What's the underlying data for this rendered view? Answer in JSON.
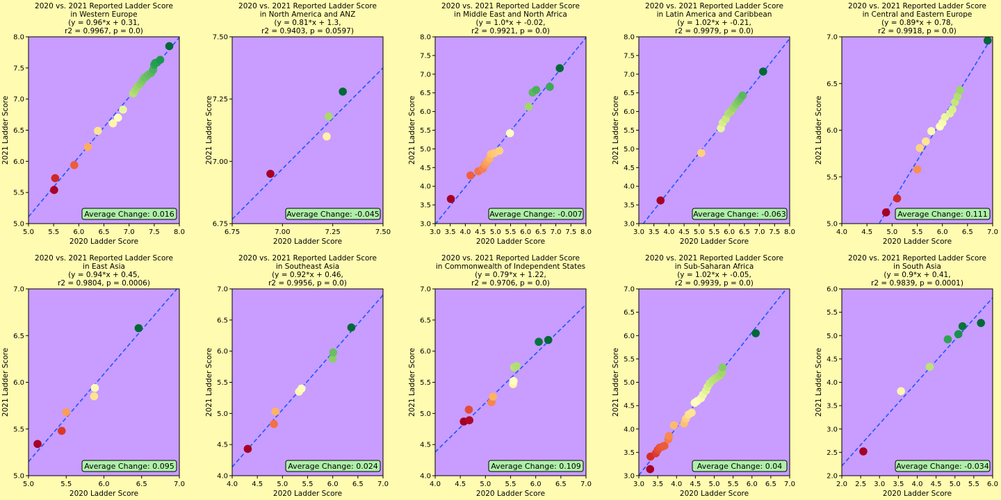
{
  "colors": {
    "figure_bg": "#fffbb0",
    "plot_bg": "#c99cff",
    "fit_line": "#1f5cff",
    "badge_fill": "#aef0a8",
    "colormap": "RdYlGn"
  },
  "chart_data": [
    {
      "type": "scatter",
      "region": "Western Europe",
      "title": [
        "2020 vs. 2021 Reported Ladder Score",
        "in Western Europe",
        "(y = 0.96*x + 0.31,",
        "r2 = 0.9967, p = 0.0)"
      ],
      "xlabel": "2020 Ladder Score",
      "ylabel": "2021 Ladder Score",
      "xlim": [
        5.0,
        8.0
      ],
      "ylim": [
        5.0,
        8.0
      ],
      "xticks": [
        "5.0",
        "5.5",
        "6.0",
        "6.5",
        "7.0",
        "7.5",
        "8.0"
      ],
      "yticks": [
        "5.0",
        "5.5",
        "6.0",
        "6.5",
        "7.0",
        "7.5",
        "8.0"
      ],
      "fit": {
        "slope": 0.96,
        "intercept": 0.31
      },
      "annotation": "Average Change: 0.016",
      "x": [
        5.51,
        5.53,
        5.91,
        6.18,
        6.38,
        6.68,
        6.78,
        6.88,
        7.08,
        7.12,
        7.16,
        7.22,
        7.26,
        7.3,
        7.34,
        7.38,
        7.44,
        7.48,
        7.5,
        7.52,
        7.56,
        7.62,
        7.8
      ],
      "y": [
        5.54,
        5.73,
        5.94,
        6.23,
        6.49,
        6.61,
        6.7,
        6.83,
        7.09,
        7.14,
        7.19,
        7.24,
        7.29,
        7.34,
        7.36,
        7.39,
        7.42,
        7.47,
        7.55,
        7.58,
        7.59,
        7.63,
        7.85
      ]
    },
    {
      "type": "scatter",
      "region": "North America and ANZ",
      "title": [
        "2020 vs. 2021 Reported Ladder Score",
        "in North America and ANZ",
        "(y = 0.81*x + 1.3,",
        "r2 = 0.9403, p = 0.0597)"
      ],
      "xlabel": "2020 Ladder Score",
      "ylabel": "2021 Ladder Score",
      "xlim": [
        6.75,
        7.5
      ],
      "ylim": [
        6.75,
        7.5
      ],
      "xticks": [
        "6.75",
        "7.00",
        "7.25",
        "7.50"
      ],
      "yticks": [
        "6.75",
        "7.00",
        "7.25",
        "7.50"
      ],
      "fit": {
        "slope": 0.81,
        "intercept": 1.3
      },
      "annotation": "Average Change: -0.045",
      "x": [
        6.94,
        7.22,
        7.23,
        7.3
      ],
      "y": [
        6.95,
        7.1,
        7.18,
        7.28
      ]
    },
    {
      "type": "scatter",
      "region": "Middle East and North Africa",
      "title": [
        "2020 vs. 2021 Reported Ladder Score",
        "in Middle East and North Africa",
        "(y = 1.0*x + -0.02,",
        "r2 = 0.9921, p = 0.0)"
      ],
      "xlabel": "2020 Ladder Score",
      "ylabel": "2021 Ladder Score",
      "xlim": [
        3.0,
        8.0
      ],
      "ylim": [
        3.0,
        8.0
      ],
      "xticks": [
        "3.0",
        "3.5",
        "4.0",
        "4.5",
        "5.0",
        "5.5",
        "6.0",
        "6.5",
        "7.0",
        "7.5",
        "8.0"
      ],
      "yticks": [
        "3.0",
        "3.5",
        "4.0",
        "4.5",
        "5.0",
        "5.5",
        "6.0",
        "6.5",
        "7.0",
        "7.5",
        "8.0"
      ],
      "fit": {
        "slope": 1.0,
        "intercept": -0.02
      },
      "annotation": "Average Change: -0.007",
      "x": [
        3.52,
        4.17,
        4.43,
        4.58,
        4.65,
        4.72,
        4.8,
        4.85,
        4.97,
        5.13,
        5.48,
        6.1,
        6.23,
        6.35,
        6.8,
        7.13
      ],
      "y": [
        3.66,
        4.29,
        4.4,
        4.47,
        4.58,
        4.65,
        4.74,
        4.86,
        4.89,
        4.95,
        5.42,
        6.13,
        6.51,
        6.58,
        6.66,
        7.16
      ]
    },
    {
      "type": "scatter",
      "region": "Latin America and Caribbean",
      "title": [
        "2020 vs. 2021 Reported Ladder Score",
        "in Latin America and Caribbean",
        "(y = 1.02*x + -0.21,",
        "r2 = 0.9979, p = 0.0)"
      ],
      "xlabel": "2020 Ladder Score",
      "ylabel": "2021 Ladder Score",
      "xlim": [
        3.0,
        8.0
      ],
      "ylim": [
        3.0,
        8.0
      ],
      "xticks": [
        "3.0",
        "3.5",
        "4.0",
        "4.5",
        "5.0",
        "5.5",
        "6.0",
        "6.5",
        "7.0",
        "7.5",
        "8.0"
      ],
      "yticks": [
        "3.0",
        "3.5",
        "4.0",
        "4.5",
        "5.0",
        "5.5",
        "6.0",
        "6.5",
        "7.0",
        "7.5",
        "8.0"
      ],
      "fit": {
        "slope": 1.02,
        "intercept": -0.21
      },
      "annotation": "Average Change: -0.063",
      "x": [
        3.72,
        5.07,
        5.72,
        5.78,
        5.88,
        5.97,
        6.05,
        6.14,
        6.22,
        6.3,
        6.37,
        6.44,
        7.12
      ],
      "y": [
        3.62,
        4.89,
        5.55,
        5.7,
        5.8,
        5.95,
        6.0,
        6.1,
        6.2,
        6.28,
        6.35,
        6.43,
        7.07
      ]
    },
    {
      "type": "scatter",
      "region": "Central and Eastern Europe",
      "title": [
        "2020 vs. 2021 Reported Ladder Score",
        "in Central and Eastern Europe",
        "(y = 0.89*x + 0.78,",
        "r2 = 0.9918, p = 0.0)"
      ],
      "xlabel": "2020 Ladder Score",
      "ylabel": "2021 Ladder Score",
      "xlim": [
        4.0,
        7.0
      ],
      "ylim": [
        5.0,
        7.0
      ],
      "xticks": [
        "4.0",
        "4.5",
        "5.0",
        "5.5",
        "6.0",
        "6.5",
        "7.0"
      ],
      "yticks": [
        "5.0",
        "5.5",
        "6.0",
        "6.5",
        "7.0"
      ],
      "fit": {
        "slope": 0.89,
        "intercept": 0.78
      },
      "annotation": "Average Change: 0.111",
      "x": [
        4.88,
        5.1,
        5.5,
        5.55,
        5.67,
        5.78,
        5.95,
        6.0,
        6.05,
        6.15,
        6.2,
        6.25,
        6.3,
        6.35,
        6.9
      ],
      "y": [
        5.12,
        5.27,
        5.58,
        5.81,
        5.88,
        5.99,
        6.04,
        6.08,
        6.14,
        6.18,
        6.22,
        6.3,
        6.36,
        6.43,
        6.96
      ]
    },
    {
      "type": "scatter",
      "region": "East Asia",
      "title": [
        "2020 vs. 2021 Reported Ladder Score",
        "in East Asia",
        "(y = 0.94*x + 0.45,",
        "r2 = 0.9804, p = 0.0006)"
      ],
      "xlabel": "2020 Ladder Score",
      "ylabel": "2021 Ladder Score",
      "xlim": [
        5.0,
        7.0
      ],
      "ylim": [
        5.0,
        7.0
      ],
      "xticks": [
        "5.0",
        "5.5",
        "6.0",
        "6.5",
        "7.0"
      ],
      "yticks": [
        "5.0",
        "5.5",
        "6.0",
        "6.5",
        "7.0"
      ],
      "fit": {
        "slope": 0.94,
        "intercept": 0.45
      },
      "annotation": "Average Change: 0.095",
      "x": [
        5.12,
        5.44,
        5.5,
        5.87,
        5.88,
        6.46
      ],
      "y": [
        5.34,
        5.48,
        5.68,
        5.85,
        5.94,
        6.58
      ]
    },
    {
      "type": "scatter",
      "region": "Southeast Asia",
      "title": [
        "2020 vs. 2021 Reported Ladder Score",
        "in Southeast Asia",
        "(y = 0.92*x + 0.46,",
        "r2 = 0.9956, p = 0.0)"
      ],
      "xlabel": "2020 Ladder Score",
      "ylabel": "2021 Ladder Score",
      "xlim": [
        4.0,
        7.0
      ],
      "ylim": [
        4.0,
        7.0
      ],
      "xticks": [
        "4.0",
        "4.5",
        "5.0",
        "5.5",
        "6.0",
        "6.5",
        "7.0"
      ],
      "yticks": [
        "4.0",
        "4.5",
        "5.0",
        "5.5",
        "6.0",
        "6.5",
        "7.0"
      ],
      "fit": {
        "slope": 0.92,
        "intercept": 0.46
      },
      "annotation": "Average Change: 0.024",
      "x": [
        4.31,
        4.83,
        4.86,
        5.33,
        5.38,
        6.0,
        6.01,
        6.37
      ],
      "y": [
        4.43,
        4.83,
        5.03,
        5.35,
        5.4,
        5.88,
        5.98,
        6.38
      ]
    },
    {
      "type": "scatter",
      "region": "Commonwealth of Independent States",
      "title": [
        "2020 vs. 2021 Reported Ladder Score",
        "in Commonwealth of Independent States",
        "(y = 0.79*x + 1.22,",
        "r2 = 0.9706, p = 0.0)"
      ],
      "xlabel": "2020 Ladder Score",
      "ylabel": "2021 Ladder Score",
      "xlim": [
        4.0,
        7.0
      ],
      "ylim": [
        4.0,
        7.0
      ],
      "xticks": [
        "4.0",
        "4.5",
        "5.0",
        "5.5",
        "6.0",
        "6.5",
        "7.0"
      ],
      "yticks": [
        "4.0",
        "4.5",
        "5.0",
        "5.5",
        "6.0",
        "6.5",
        "7.0"
      ],
      "fit": {
        "slope": 0.79,
        "intercept": 1.22
      },
      "annotation": "Average Change: 0.109",
      "x": [
        4.57,
        4.68,
        4.67,
        5.12,
        5.15,
        5.55,
        5.56,
        5.57,
        5.62,
        6.06,
        6.25
      ],
      "y": [
        4.87,
        4.89,
        5.06,
        5.18,
        5.27,
        5.47,
        5.52,
        5.74,
        5.76,
        6.15,
        6.18
      ]
    },
    {
      "type": "scatter",
      "region": "Sub-Saharan Africa",
      "title": [
        "2020 vs. 2021 Reported Ladder Score",
        "in Sub-Saharan Africa",
        "(y = 1.02*x + -0.05,",
        "r2 = 0.9939, p = 0.0)"
      ],
      "xlabel": "2020 Ladder Score",
      "ylabel": "2021 Ladder Score",
      "xlim": [
        3.0,
        7.0
      ],
      "ylim": [
        3.0,
        7.0
      ],
      "xticks": [
        "3.0",
        "3.5",
        "4.0",
        "4.5",
        "5.0",
        "5.5",
        "6.0",
        "6.5",
        "7.0"
      ],
      "yticks": [
        "3.0",
        "3.5",
        "4.0",
        "4.5",
        "5.0",
        "5.5",
        "6.0",
        "6.5",
        "7.0"
      ],
      "fit": {
        "slope": 1.02,
        "intercept": -0.05
      },
      "annotation": "Average Change: 0.04",
      "x": [
        3.3,
        3.31,
        3.45,
        3.5,
        3.55,
        3.62,
        3.68,
        3.78,
        3.8,
        3.93,
        4.2,
        4.25,
        4.32,
        4.4,
        4.48,
        4.55,
        4.65,
        4.7,
        4.78,
        4.82,
        4.88,
        4.95,
        5.02,
        5.1,
        5.15,
        5.2,
        5.22,
        6.1
      ],
      "y": [
        3.14,
        3.41,
        3.48,
        3.55,
        3.6,
        3.62,
        3.64,
        3.78,
        3.85,
        4.08,
        4.12,
        4.22,
        4.31,
        4.35,
        4.56,
        4.6,
        4.66,
        4.73,
        4.82,
        4.9,
        4.98,
        5.04,
        5.08,
        5.12,
        5.15,
        5.2,
        5.32,
        6.05
      ]
    },
    {
      "type": "scatter",
      "region": "South Asia",
      "title": [
        "2020 vs. 2021 Reported Ladder Score",
        "in South Asia",
        "(y = 0.9*x + 0.41,",
        "r2 = 0.9839, p = 0.0001)"
      ],
      "xlabel": "2020 Ladder Score",
      "ylabel": "2021 Ladder Score",
      "xlim": [
        2.0,
        6.0
      ],
      "ylim": [
        2.0,
        6.0
      ],
      "xticks": [
        "2.0",
        "2.5",
        "3.0",
        "3.5",
        "4.0",
        "4.5",
        "5.0",
        "5.5",
        "6.0"
      ],
      "yticks": [
        "2.0",
        "2.5",
        "3.0",
        "3.5",
        "4.0",
        "4.5",
        "5.0",
        "5.5",
        "6.0"
      ],
      "fit": {
        "slope": 0.9,
        "intercept": 0.41
      },
      "annotation": "Average Change: -0.034",
      "x": [
        2.57,
        3.57,
        4.33,
        4.81,
        5.09,
        5.2,
        5.69
      ],
      "y": [
        2.52,
        3.81,
        4.33,
        4.92,
        5.03,
        5.2,
        5.27
      ]
    }
  ]
}
